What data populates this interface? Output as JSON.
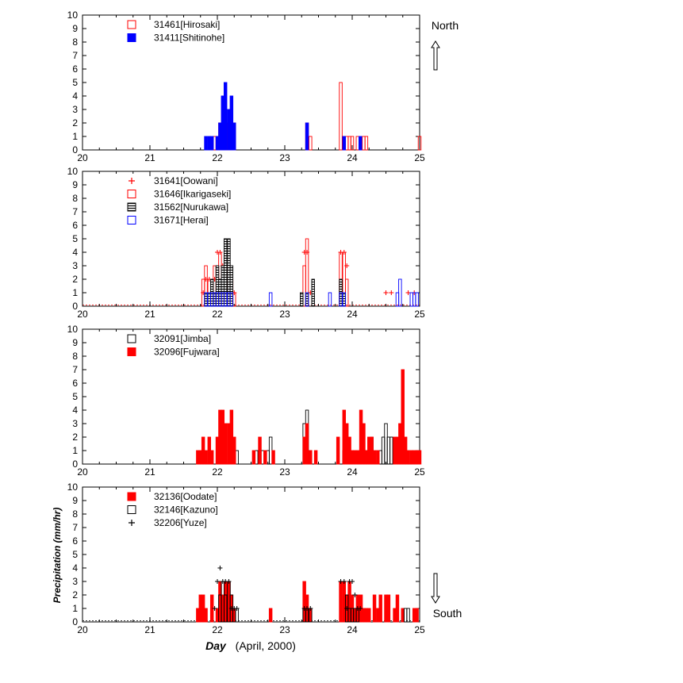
{
  "chart_data": {
    "type": "bar",
    "xlabel_bold": "Day",
    "xlabel_rest": "(April,  2000)",
    "ylabel": "Precipitation  (mm/hr)",
    "xlim": [
      20,
      25
    ],
    "ylim": [
      0,
      10
    ],
    "x_ticks": [
      "20",
      "21",
      "22",
      "23",
      "24",
      "25"
    ],
    "y_ticks": [
      "0",
      "1",
      "2",
      "3",
      "4",
      "5",
      "6",
      "7",
      "8",
      "9",
      "10"
    ],
    "direction": {
      "top": "North",
      "bottom": "South"
    },
    "panels": [
      {
        "series": [
          {
            "name": "31461[Hirosaki]",
            "style": "open",
            "color": "#ff0000",
            "x": [
              21.96,
              22.0,
              22.04,
              22.08,
              22.12,
              22.17,
              22.21,
              22.25,
              23.33,
              23.38,
              23.83,
              23.88,
              23.92,
              23.96,
              24.0,
              24.08,
              24.17,
              24.21,
              25.0
            ],
            "values": [
              1,
              1,
              2,
              2,
              2,
              2,
              2,
              2,
              2,
              1,
              5,
              1,
              1,
              1,
              1,
              1,
              1,
              1,
              1
            ]
          },
          {
            "name": "31411[Shitinohe]",
            "style": "filled",
            "color": "#0000ff",
            "x": [
              21.83,
              21.88,
              21.92,
              22.0,
              22.04,
              22.08,
              22.12,
              22.17,
              22.21,
              22.25,
              23.33,
              23.88,
              24.12
            ],
            "values": [
              1,
              1,
              1,
              1,
              2,
              4,
              5,
              3,
              4,
              2,
              2,
              1,
              1
            ]
          }
        ]
      },
      {
        "series": [
          {
            "name": "31641[Oowani]",
            "style": "plus",
            "color": "#ff0000",
            "x": [
              21.79,
              21.83,
              21.88,
              21.92,
              21.96,
              22.0,
              22.04,
              22.08,
              22.12,
              22.17,
              22.21,
              22.25,
              23.29,
              23.33,
              23.38,
              23.83,
              23.88,
              23.92,
              24.5,
              24.58,
              24.83,
              24.92
            ],
            "values": [
              1,
              2,
              2,
              1,
              2,
              4,
              4,
              3,
              3,
              3,
              1,
              1,
              4,
              4,
              1,
              4,
              4,
              3,
              1,
              1,
              1,
              1
            ]
          },
          {
            "name": "31646[Ikarigaseki]",
            "style": "open",
            "color": "#ff0000",
            "x": [
              21.79,
              21.83,
              21.88,
              21.92,
              21.96,
              22.0,
              22.04,
              22.08,
              22.12,
              22.17,
              22.21,
              22.25,
              23.29,
              23.33,
              23.83,
              23.88,
              23.92
            ],
            "values": [
              2,
              3,
              2,
              2,
              3,
              3,
              4,
              3,
              3,
              2,
              2,
              1,
              3,
              5,
              4,
              4,
              2
            ]
          },
          {
            "name": "31562[Nurukawa]",
            "style": "hatched",
            "color": "#000000",
            "x": [
              21.83,
              21.88,
              21.92,
              21.96,
              22.0,
              22.04,
              22.08,
              22.12,
              22.17,
              22.21,
              23.25,
              23.33,
              23.42,
              23.83,
              23.88
            ],
            "values": [
              1,
              1,
              2,
              1,
              3,
              2,
              3,
              5,
              5,
              3,
              1,
              1,
              2,
              2,
              1
            ]
          },
          {
            "name": "31671[Herai]",
            "style": "open",
            "color": "#0000ff",
            "x": [
              21.83,
              21.88,
              21.92,
              21.96,
              22.0,
              22.04,
              22.08,
              22.12,
              22.17,
              22.21,
              22.79,
              23.33,
              23.67,
              23.83,
              23.88,
              24.67,
              24.71,
              24.88,
              24.92,
              24.96
            ],
            "values": [
              1,
              1,
              1,
              1,
              1,
              1,
              1,
              1,
              1,
              1,
              1,
              1,
              1,
              1,
              1,
              1,
              2,
              1,
              1,
              1
            ]
          }
        ]
      },
      {
        "series": [
          {
            "name": "32091[Jimba]",
            "style": "open",
            "color": "#000000",
            "x": [
              22.29,
              22.58,
              22.67,
              22.75,
              22.79,
              23.29,
              23.33,
              23.38,
              23.88,
              23.92,
              24.13,
              24.21,
              24.29,
              24.42,
              24.46,
              24.5,
              24.54,
              24.58,
              24.67,
              24.71
            ],
            "values": [
              1,
              1,
              1,
              1,
              2,
              3,
              4,
              1,
              1,
              1,
              1,
              1,
              2,
              1,
              2,
              3,
              2,
              2,
              1,
              1
            ]
          },
          {
            "name": "32096[Fujwara]",
            "style": "filled",
            "color": "#ff0000",
            "x": [
              21.71,
              21.75,
              21.79,
              21.83,
              21.88,
              21.92,
              22.0,
              22.04,
              22.08,
              22.12,
              22.17,
              22.21,
              22.25,
              22.54,
              22.63,
              22.71,
              22.83,
              23.29,
              23.33,
              23.38,
              23.46,
              23.79,
              23.88,
              23.92,
              23.96,
              24.0,
              24.04,
              24.08,
              24.13,
              24.17,
              24.21,
              24.25,
              24.29,
              24.33,
              24.38,
              24.63,
              24.67,
              24.71,
              24.75,
              24.79,
              24.83,
              24.88,
              24.92,
              24.96,
              25.0
            ],
            "values": [
              1,
              1,
              2,
              1,
              2,
              1,
              2,
              4,
              4,
              3,
              3,
              4,
              2,
              1,
              2,
              1,
              1,
              2,
              3,
              1,
              1,
              2,
              4,
              3,
              2,
              1,
              1,
              1,
              4,
              3,
              1,
              2,
              2,
              1,
              1,
              2,
              2,
              3,
              7,
              2,
              1,
              1,
              1,
              1,
              1
            ]
          }
        ]
      },
      {
        "series": [
          {
            "name": "32136[Oodate]",
            "style": "filled",
            "color": "#ff0000",
            "x": [
              21.71,
              21.75,
              21.79,
              21.83,
              21.92,
              22.0,
              22.04,
              22.08,
              22.12,
              22.17,
              22.21,
              22.25,
              22.79,
              23.29,
              23.33,
              23.38,
              23.83,
              23.88,
              23.92,
              23.96,
              24.0,
              24.04,
              24.08,
              24.13,
              24.17,
              24.21,
              24.25,
              24.33,
              24.38,
              24.42,
              24.5,
              24.54,
              24.63,
              24.67,
              24.75,
              24.92,
              24.96
            ],
            "values": [
              1,
              2,
              2,
              1,
              2,
              1,
              3,
              2,
              3,
              3,
              2,
              1,
              1,
              3,
              2,
              1,
              3,
              3,
              2,
              3,
              2,
              1,
              2,
              2,
              1,
              1,
              1,
              2,
              1,
              2,
              2,
              2,
              1,
              2,
              1,
              1,
              1
            ]
          },
          {
            "name": "32146[Kazuno]",
            "style": "open",
            "color": "#000000",
            "x": [
              22.04,
              22.08,
              22.12,
              22.17,
              22.21,
              22.25,
              22.29,
              23.29,
              23.33,
              23.38,
              23.92,
              23.96,
              24.0,
              24.04,
              24.08,
              24.79,
              24.83
            ],
            "values": [
              2,
              3,
              2,
              3,
              2,
              1,
              1,
              1,
              1,
              1,
              2,
              1,
              1,
              1,
              1,
              1,
              1
            ]
          },
          {
            "name": "32206[Yuze]",
            "style": "plus",
            "color": "#000000",
            "x": [
              21.96,
              22.0,
              22.04,
              22.08,
              22.12,
              22.17,
              22.21,
              22.25,
              22.29,
              23.29,
              23.33,
              23.38,
              23.83,
              23.88,
              23.92,
              23.96,
              24.0,
              24.04,
              24.08,
              24.12
            ],
            "values": [
              1,
              3,
              4,
              3,
              3,
              3,
              1,
              1,
              1,
              1,
              1,
              1,
              3,
              3,
              1,
              3,
              3,
              2,
              1,
              1
            ]
          }
        ]
      }
    ]
  }
}
